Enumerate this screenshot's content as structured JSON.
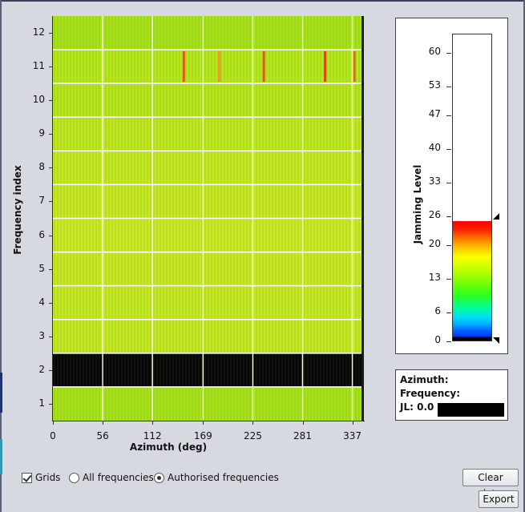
{
  "heatmap": {
    "y_axis_title": "Frequency index",
    "x_axis_title": "Azimuth (deg)",
    "y_ticks": [
      "1",
      "2",
      "3",
      "4",
      "5",
      "6",
      "7",
      "8",
      "9",
      "10",
      "11",
      "12"
    ],
    "x_ticks": [
      "0",
      "56",
      "112",
      "169",
      "225",
      "281",
      "337"
    ],
    "x_range": [
      0,
      350
    ],
    "rows": [
      {
        "index": 12,
        "color": "#a8e21c",
        "hot_cols": []
      },
      {
        "index": 11,
        "color": "#b6e81e",
        "hot_cols": [
          {
            "az": 146,
            "color": "#e05a1a"
          },
          {
            "az": 186,
            "color": "#e8a020"
          },
          {
            "az": 236,
            "color": "#e05a1a"
          },
          {
            "az": 305,
            "color": "#d94a10"
          },
          {
            "az": 338,
            "color": "#e86a1a"
          }
        ]
      },
      {
        "index": 10,
        "color": "#b8e61e",
        "hot_cols": []
      },
      {
        "index": 9,
        "color": "#bfe820",
        "hot_cols": []
      },
      {
        "index": 8,
        "color": "#c3e824",
        "hot_cols": []
      },
      {
        "index": 7,
        "color": "#c7ea25",
        "hot_cols": []
      },
      {
        "index": 6,
        "color": "#c9ea26",
        "hot_cols": []
      },
      {
        "index": 5,
        "color": "#c8ea26",
        "hot_cols": []
      },
      {
        "index": 4,
        "color": "#c5e925",
        "hot_cols": []
      },
      {
        "index": 3,
        "color": "#c4e924",
        "hot_cols": []
      },
      {
        "index": 2,
        "color": "#050505",
        "hot_cols": []
      },
      {
        "index": 1,
        "color": "#a8e21c",
        "hot_cols": []
      }
    ]
  },
  "colorbar": {
    "title": "Jamming Level",
    "ticks": [
      "0",
      "6",
      "13",
      "20",
      "26",
      "33",
      "40",
      "47",
      "53",
      "60"
    ],
    "range": [
      0,
      64
    ],
    "current_level": 25
  },
  "info": {
    "azimuth_label": "Azimuth:",
    "frequency_label": "Frequency:",
    "jl_label": "JL: 0.0"
  },
  "controls": {
    "grids_label": "Grids",
    "grids_checked": true,
    "all_freq_label": "All frequencies",
    "auth_freq_label": "Authorised frequencies",
    "selected_mode": "authorised",
    "clear_button": "Clear data",
    "export_button": "Export"
  }
}
